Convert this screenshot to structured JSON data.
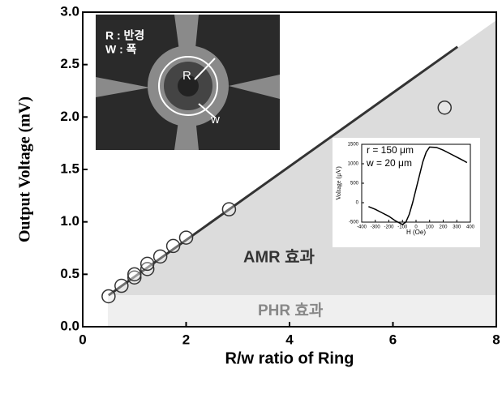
{
  "chart_data": [
    {
      "type": "scatter",
      "x_label": "R/w ratio of Ring",
      "y_label": "Output Voltage (mV)",
      "x": [
        0.5,
        0.75,
        1.0,
        1.0,
        1.25,
        1.25,
        1.5,
        1.75,
        2.0,
        2.83,
        7.0
      ],
      "values": [
        0.29,
        0.39,
        0.47,
        0.5,
        0.55,
        0.6,
        0.67,
        0.77,
        0.85,
        1.12,
        2.09
      ],
      "fit_line": {
        "x": [
          0.5,
          7.25
        ],
        "values": [
          0.3,
          2.67
        ],
        "color": "#333333"
      },
      "xlim": [
        0,
        8
      ],
      "xticks": [
        0,
        2,
        4,
        6,
        8
      ],
      "ylim": [
        0,
        3
      ],
      "yticks": [
        {
          "value": 0,
          "label": "0.0"
        },
        0.5,
        {
          "value": 1,
          "label": "1.0"
        },
        1.5,
        {
          "value": 2,
          "label": "2.0"
        },
        2.5,
        {
          "value": 3,
          "label": "3.0"
        }
      ],
      "annotations": [
        "AMR 효과",
        "PHR 효과"
      ],
      "image_labels": [
        "R : 반경",
        "W : 폭",
        "R",
        "w"
      ]
    },
    {
      "type": "line",
      "x_label": "H (Oe)",
      "y_label": "Voltage (μV)",
      "annotations": [
        "r = 150 μm",
        "w = 20 μm"
      ],
      "x": [
        -350,
        -300,
        -250,
        -200,
        -150,
        -100,
        -75,
        -50,
        -25,
        0,
        25,
        50,
        75,
        100,
        150,
        200,
        250,
        300,
        350,
        375
      ],
      "values": [
        -100,
        -170,
        -260,
        -350,
        -470,
        -560,
        -500,
        -300,
        0,
        350,
        700,
        1050,
        1300,
        1430,
        1420,
        1350,
        1260,
        1170,
        1080,
        1030
      ],
      "color": "#000000",
      "xlim": [
        -400,
        400
      ],
      "xticks": [
        -400,
        -300,
        -200,
        -100,
        0,
        100,
        200,
        300,
        400
      ],
      "ylim": [
        -500,
        1500
      ],
      "yticks": [
        -500,
        0,
        500,
        1000,
        1500
      ]
    }
  ]
}
